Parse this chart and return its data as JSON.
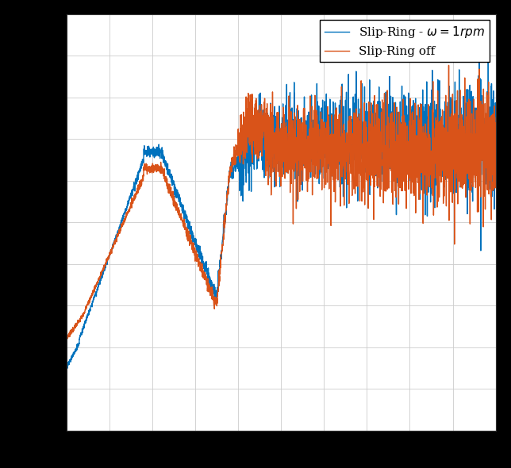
{
  "line1_color": "#0072BD",
  "line2_color": "#D95319",
  "legend_labels": [
    "Slip-Ring - $\\omega = 1rpm$",
    "Slip-Ring off"
  ],
  "legend_fontsize": 11,
  "background_color": "#ffffff",
  "figure_color": "#000000",
  "grid_color": "#cccccc",
  "figsize": [
    6.44,
    5.9
  ],
  "dpi": 100,
  "line_width": 1.0
}
